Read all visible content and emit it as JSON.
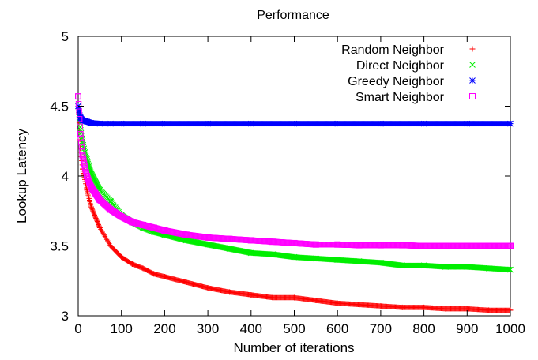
{
  "chart_data": {
    "type": "scatter",
    "title": "Performance",
    "xlabel": "Number of iterations",
    "ylabel": "Lookup Latency",
    "xlim": [
      0,
      1000
    ],
    "ylim": [
      3,
      5
    ],
    "xticks": [
      0,
      100,
      200,
      300,
      400,
      500,
      600,
      700,
      800,
      900,
      1000
    ],
    "yticks": [
      3,
      3.5,
      4,
      4.5,
      5
    ],
    "ytick_labels": [
      "3",
      "3.5",
      "4",
      "4.5",
      "5"
    ],
    "grid": false,
    "legend_position": "top-right",
    "series": [
      {
        "name": "Random Neighbor",
        "marker": "plus",
        "color": "#ff0000",
        "x": [
          0,
          5,
          10,
          20,
          30,
          50,
          75,
          100,
          125,
          150,
          175,
          200,
          250,
          300,
          350,
          400,
          450,
          500,
          550,
          600,
          650,
          700,
          750,
          800,
          850,
          900,
          950,
          1000
        ],
        "y": [
          4.5,
          4.2,
          4.05,
          3.9,
          3.78,
          3.63,
          3.5,
          3.42,
          3.37,
          3.34,
          3.3,
          3.28,
          3.24,
          3.2,
          3.17,
          3.15,
          3.13,
          3.13,
          3.11,
          3.09,
          3.08,
          3.07,
          3.06,
          3.06,
          3.05,
          3.05,
          3.04,
          3.04
        ]
      },
      {
        "name": "Direct Neighbor",
        "marker": "cross",
        "color": "#00ee00",
        "x": [
          0,
          5,
          10,
          20,
          30,
          50,
          75,
          100,
          125,
          150,
          175,
          200,
          250,
          300,
          350,
          400,
          450,
          500,
          550,
          600,
          650,
          700,
          750,
          800,
          850,
          900,
          950,
          1000
        ],
        "y": [
          4.5,
          4.35,
          4.25,
          4.12,
          4.02,
          3.9,
          3.82,
          3.72,
          3.67,
          3.63,
          3.6,
          3.58,
          3.54,
          3.51,
          3.48,
          3.45,
          3.44,
          3.42,
          3.41,
          3.4,
          3.39,
          3.38,
          3.36,
          3.36,
          3.35,
          3.35,
          3.34,
          3.33
        ]
      },
      {
        "name": "Greedy Neighbor",
        "marker": "asterisk",
        "color": "#0000ff",
        "x": [
          0,
          5,
          10,
          20,
          30,
          50,
          75,
          100,
          150,
          200,
          300,
          400,
          500,
          600,
          700,
          800,
          900,
          1000
        ],
        "y": [
          4.5,
          4.42,
          4.4,
          4.39,
          4.38,
          4.375,
          4.375,
          4.375,
          4.375,
          4.375,
          4.375,
          4.375,
          4.375,
          4.375,
          4.375,
          4.375,
          4.375,
          4.375
        ]
      },
      {
        "name": "Smart Neighbor",
        "marker": "square",
        "color": "#ff00ff",
        "x": [
          0,
          5,
          10,
          20,
          30,
          50,
          75,
          100,
          125,
          150,
          175,
          200,
          250,
          300,
          350,
          400,
          450,
          500,
          550,
          600,
          650,
          700,
          750,
          800,
          850,
          900,
          950,
          1000
        ],
        "y": [
          4.57,
          4.3,
          4.15,
          4.0,
          3.92,
          3.83,
          3.76,
          3.71,
          3.67,
          3.65,
          3.63,
          3.61,
          3.58,
          3.56,
          3.55,
          3.54,
          3.53,
          3.52,
          3.51,
          3.51,
          3.505,
          3.505,
          3.505,
          3.5,
          3.5,
          3.5,
          3.5,
          3.5
        ]
      }
    ]
  }
}
